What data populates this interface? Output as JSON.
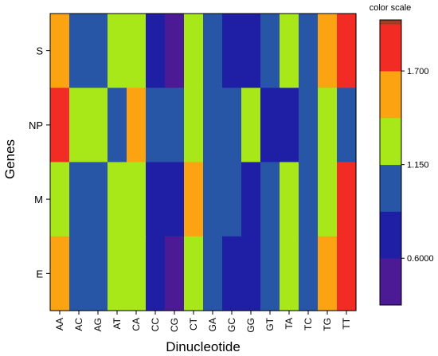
{
  "chart_data": {
    "type": "heatmap",
    "title": "",
    "xlabel": "Dinucleotide",
    "ylabel": "Genes",
    "x_categories": [
      "AA",
      "AC",
      "AG",
      "AT",
      "CA",
      "CC",
      "CG",
      "CT",
      "GA",
      "GC",
      "GG",
      "GT",
      "TA",
      "TC",
      "TG",
      "TT"
    ],
    "y_categories": [
      "S",
      "NP",
      "M",
      "E"
    ],
    "values": [
      [
        1.45,
        0.9,
        0.9,
        1.15,
        1.15,
        0.6,
        0.45,
        1.15,
        0.9,
        0.6,
        0.6,
        0.9,
        1.15,
        0.9,
        1.45,
        1.75
      ],
      [
        1.75,
        1.15,
        1.15,
        0.9,
        1.45,
        0.9,
        0.9,
        1.15,
        0.9,
        0.9,
        1.15,
        0.6,
        0.6,
        0.9,
        1.15,
        0.9
      ],
      [
        1.15,
        0.9,
        0.9,
        1.15,
        1.15,
        0.6,
        0.6,
        1.45,
        0.9,
        0.9,
        0.6,
        0.9,
        1.15,
        0.9,
        1.15,
        1.75
      ],
      [
        1.45,
        0.9,
        0.9,
        1.15,
        1.15,
        0.6,
        0.45,
        1.15,
        0.9,
        0.6,
        0.6,
        0.9,
        1.15,
        0.9,
        1.45,
        1.75
      ]
    ],
    "colorbar": {
      "title": "color scale",
      "ticks": [
        1.7,
        1.15,
        0.6
      ],
      "tick_labels": [
        "1.700",
        "1.150",
        "0.6000"
      ],
      "range": [
        0.325,
        2.0
      ],
      "bands": [
        {
          "min": 0.325,
          "max": 0.6,
          "color": "#4d1a96"
        },
        {
          "min": 0.6,
          "max": 0.875,
          "color": "#1f1fa6"
        },
        {
          "min": 0.875,
          "max": 1.15,
          "color": "#2856a6"
        },
        {
          "min": 1.15,
          "max": 1.425,
          "color": "#a8e818"
        },
        {
          "min": 1.425,
          "max": 1.7,
          "color": "#fca312"
        },
        {
          "min": 1.7,
          "max": 1.975,
          "color": "#f22c24"
        },
        {
          "min": 1.975,
          "max": 2.0,
          "color": "#a23d24"
        }
      ]
    }
  }
}
